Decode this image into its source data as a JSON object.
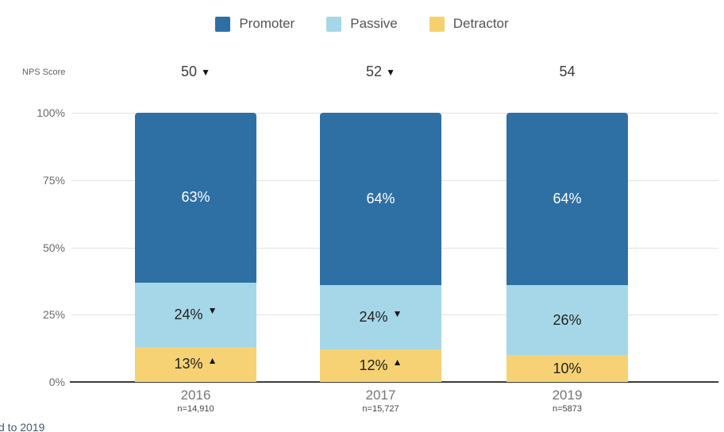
{
  "legend": {
    "items": [
      {
        "label": "Promoter",
        "color": "#2e6fa4"
      },
      {
        "label": "Passive",
        "color": "#a5d7e8"
      },
      {
        "label": "Detractor",
        "color": "#f7d06e"
      }
    ]
  },
  "nps_row": {
    "label": "NPS Score",
    "scores": [
      {
        "value": "50",
        "arrow": "▼"
      },
      {
        "value": "52",
        "arrow": "▼"
      },
      {
        "value": "54",
        "arrow": ""
      }
    ]
  },
  "chart_data": {
    "type": "bar",
    "stacked": true,
    "title": "",
    "categories": [
      "2016",
      "2017",
      "2019"
    ],
    "sample_sizes": [
      "n=14,910",
      "n=15,727",
      "n=5873"
    ],
    "series": [
      {
        "name": "Promoter",
        "color": "#2e6fa4",
        "label_color": "#ffffff",
        "values": [
          63,
          64,
          64
        ],
        "arrows": [
          "",
          "",
          ""
        ]
      },
      {
        "name": "Passive",
        "color": "#a5d7e8",
        "label_color": "#212121",
        "values": [
          24,
          24,
          26
        ],
        "arrows": [
          "▼",
          "▼",
          ""
        ]
      },
      {
        "name": "Detractor",
        "color": "#f7d274",
        "label_color": "#212121",
        "values": [
          13,
          12,
          10
        ],
        "arrows": [
          "▲",
          "▲",
          ""
        ]
      }
    ],
    "nps_scores": [
      50,
      52,
      54
    ],
    "y_ticks": [
      "100%",
      "75%",
      "50%",
      "25%",
      "0%"
    ],
    "ylim": [
      0,
      100
    ],
    "grid": true,
    "legend_position": "top"
  },
  "footnote": {
    "visible_fragment": "d to 2019"
  }
}
